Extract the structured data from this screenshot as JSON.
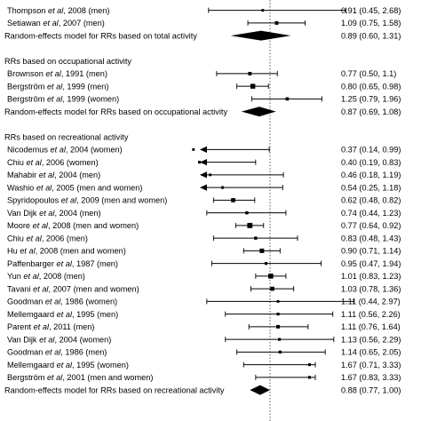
{
  "chart_data": {
    "type": "forest",
    "measure": "RR",
    "rows": [
      {
        "kind": "study",
        "author": "Thompson",
        "rest": ", 2008 (men)",
        "rr": 0.91,
        "lo": 0.45,
        "hi": 2.68,
        "ci_text": "0.91 (0.45, 2.68)",
        "arrow_left": false,
        "arrow_right": false
      },
      {
        "kind": "study",
        "author": "Setiawan",
        "rest": ", 2007 (men)",
        "rr": 1.09,
        "lo": 0.75,
        "hi": 1.58,
        "ci_text": "1.09 (0.75, 1.58)",
        "arrow_left": false,
        "arrow_right": false
      },
      {
        "kind": "pooled",
        "label": "Random-effects model for RRs based on total activity",
        "rr": 0.89,
        "lo": 0.6,
        "hi": 1.31,
        "ci_text": "0.89 (0.60, 1.31)"
      },
      {
        "kind": "heading",
        "label": "RRs based on occupational activity"
      },
      {
        "kind": "study",
        "author": "Brownson",
        "rest": ", 1991 (men)",
        "rr": 0.77,
        "lo": 0.5,
        "hi": 1.1,
        "ci_text": "0.77 (0.50, 1.1)",
        "arrow_left": false,
        "arrow_right": false
      },
      {
        "kind": "study",
        "author": "Bergström",
        "rest": ", 1999 (men)",
        "rr": 0.8,
        "lo": 0.65,
        "hi": 0.98,
        "ci_text": "0.80 (0.65, 0.98)",
        "arrow_left": false,
        "arrow_right": false
      },
      {
        "kind": "study",
        "author": "Bergström",
        "rest": ", 1999 (women)",
        "rr": 1.25,
        "lo": 0.79,
        "hi": 1.96,
        "ci_text": "1.25 (0.79, 1.96)",
        "arrow_left": false,
        "arrow_right": false
      },
      {
        "kind": "pooled",
        "label": "Random-effects model for RRs based on occupational activity",
        "rr": 0.87,
        "lo": 0.69,
        "hi": 1.08,
        "ci_text": "0.87 (0.69, 1.08)"
      },
      {
        "kind": "heading",
        "label": "RRs based on recreational activity"
      },
      {
        "kind": "study",
        "author": "Nicodemus",
        "rest": ", 2004 (women)",
        "rr": 0.37,
        "lo": 0.14,
        "hi": 0.99,
        "ci_text": "0.37 (0.14, 0.99)",
        "arrow_left": true,
        "arrow_right": false
      },
      {
        "kind": "study",
        "author": "Chiu",
        "rest": ", 2006 (women)",
        "rr": 0.4,
        "lo": 0.19,
        "hi": 0.83,
        "ci_text": "0.40 (0.19, 0.83)",
        "arrow_left": true,
        "arrow_right": false
      },
      {
        "kind": "study",
        "author": "Mahabir",
        "rest": ", 2004 (men)",
        "rr": 0.46,
        "lo": 0.18,
        "hi": 1.19,
        "ci_text": "0.46 (0.18, 1.19)",
        "arrow_left": true,
        "arrow_right": false
      },
      {
        "kind": "study",
        "author": "Washio",
        "rest": ", 2005 (men and women)",
        "rr": 0.54,
        "lo": 0.25,
        "hi": 1.18,
        "ci_text": "0.54 (0.25, 1.18)",
        "arrow_left": true,
        "arrow_right": false
      },
      {
        "kind": "study",
        "author": "Spyridopoulos",
        "rest": ", 2009 (men and women)",
        "rr": 0.62,
        "lo": 0.48,
        "hi": 0.82,
        "ci_text": "0.62 (0.48, 0.82)",
        "arrow_left": false,
        "arrow_right": false
      },
      {
        "kind": "study",
        "author": "Van Dijk",
        "rest": ", 2004 (men)",
        "rr": 0.74,
        "lo": 0.44,
        "hi": 1.23,
        "ci_text": "0.74 (0.44, 1.23)",
        "arrow_left": false,
        "arrow_right": false
      },
      {
        "kind": "study",
        "author": "Moore",
        "rest": ", 2008 (men and women)",
        "rr": 0.77,
        "lo": 0.64,
        "hi": 0.92,
        "ci_text": "0.77 (0.64, 0.92)",
        "arrow_left": false,
        "arrow_right": false
      },
      {
        "kind": "study",
        "author": "Chiu",
        "rest": ", 2006 (men)",
        "rr": 0.83,
        "lo": 0.48,
        "hi": 1.43,
        "ci_text": "0.83 (0.48, 1.43)",
        "arrow_left": false,
        "arrow_right": false
      },
      {
        "kind": "study",
        "author": "Hu",
        "rest": ", 2008 (men and women)",
        "rr": 0.9,
        "lo": 0.71,
        "hi": 1.14,
        "ci_text": "0.90 (0.71, 1.14)",
        "arrow_left": false,
        "arrow_right": false
      },
      {
        "kind": "study",
        "author": "Paffenbarger",
        "rest": ", 1987 (men)",
        "rr": 0.95,
        "lo": 0.47,
        "hi": 1.94,
        "ci_text": "0.95 (0.47, 1.94)",
        "arrow_left": false,
        "arrow_right": false
      },
      {
        "kind": "study",
        "author": "Yun",
        "rest": ", 2008 (men)",
        "rr": 1.01,
        "lo": 0.83,
        "hi": 1.23,
        "ci_text": "1.01 (0.83, 1.23)",
        "arrow_left": false,
        "arrow_right": false
      },
      {
        "kind": "study",
        "author": "Tavani",
        "rest": ", 2007 (men and women)",
        "rr": 1.03,
        "lo": 0.78,
        "hi": 1.36,
        "ci_text": "1.03 (0.78, 1.36)",
        "arrow_left": false,
        "arrow_right": false
      },
      {
        "kind": "study",
        "author": "Goodman",
        "rest": ", 1986 (women)",
        "rr": 1.11,
        "lo": 0.44,
        "hi": 2.97,
        "ci_text": "1.11 (0.44, 2.97)",
        "arrow_left": false,
        "arrow_right": false
      },
      {
        "kind": "study",
        "author": "Mellemgaard",
        "rest": ", 1995 (men)",
        "rr": 1.11,
        "lo": 0.56,
        "hi": 2.26,
        "ci_text": "1.11 (0.56, 2.26)",
        "arrow_left": false,
        "arrow_right": false
      },
      {
        "kind": "study",
        "author": "Parent",
        "rest": ", 2011 (men)",
        "rr": 1.11,
        "lo": 0.76,
        "hi": 1.64,
        "ci_text": "1.11 (0.76, 1.64)",
        "arrow_left": false,
        "arrow_right": false
      },
      {
        "kind": "study",
        "author": "Van Dijk",
        "rest": ", 2004 (women)",
        "rr": 1.13,
        "lo": 0.56,
        "hi": 2.29,
        "ci_text": "1.13 (0.56, 2.29)",
        "arrow_left": false,
        "arrow_right": false
      },
      {
        "kind": "study",
        "author": "Goodman",
        "rest": ", 1986 (men)",
        "rr": 1.14,
        "lo": 0.65,
        "hi": 2.05,
        "ci_text": "1.14 (0.65, 2.05)",
        "arrow_left": false,
        "arrow_right": false
      },
      {
        "kind": "study",
        "author": "Mellemgaard",
        "rest": ", 1995 (women)",
        "rr": 1.67,
        "lo": 0.71,
        "hi": 3.33,
        "ci_text": "1.67 (0.71, 3.33)",
        "arrow_left": false,
        "arrow_right": true
      },
      {
        "kind": "study",
        "author": "Bergström",
        "rest": ", 2001 (men and women)",
        "rr": 1.67,
        "lo": 0.83,
        "hi": 3.33,
        "ci_text": "1.67 (0.83, 3.33)",
        "arrow_left": false,
        "arrow_right": true
      },
      {
        "kind": "pooled",
        "label": "Random-effects model for RRs based on recreational activity",
        "rr": 0.88,
        "lo": 0.77,
        "hi": 1.0,
        "ci_text": "0.88 (0.77, 1.00)"
      }
    ],
    "et_al": "et al",
    "x_scale": "log",
    "xlim": [
      0.25,
      3.0
    ],
    "reference_line": 1.0,
    "grid": false,
    "legend": "none"
  }
}
